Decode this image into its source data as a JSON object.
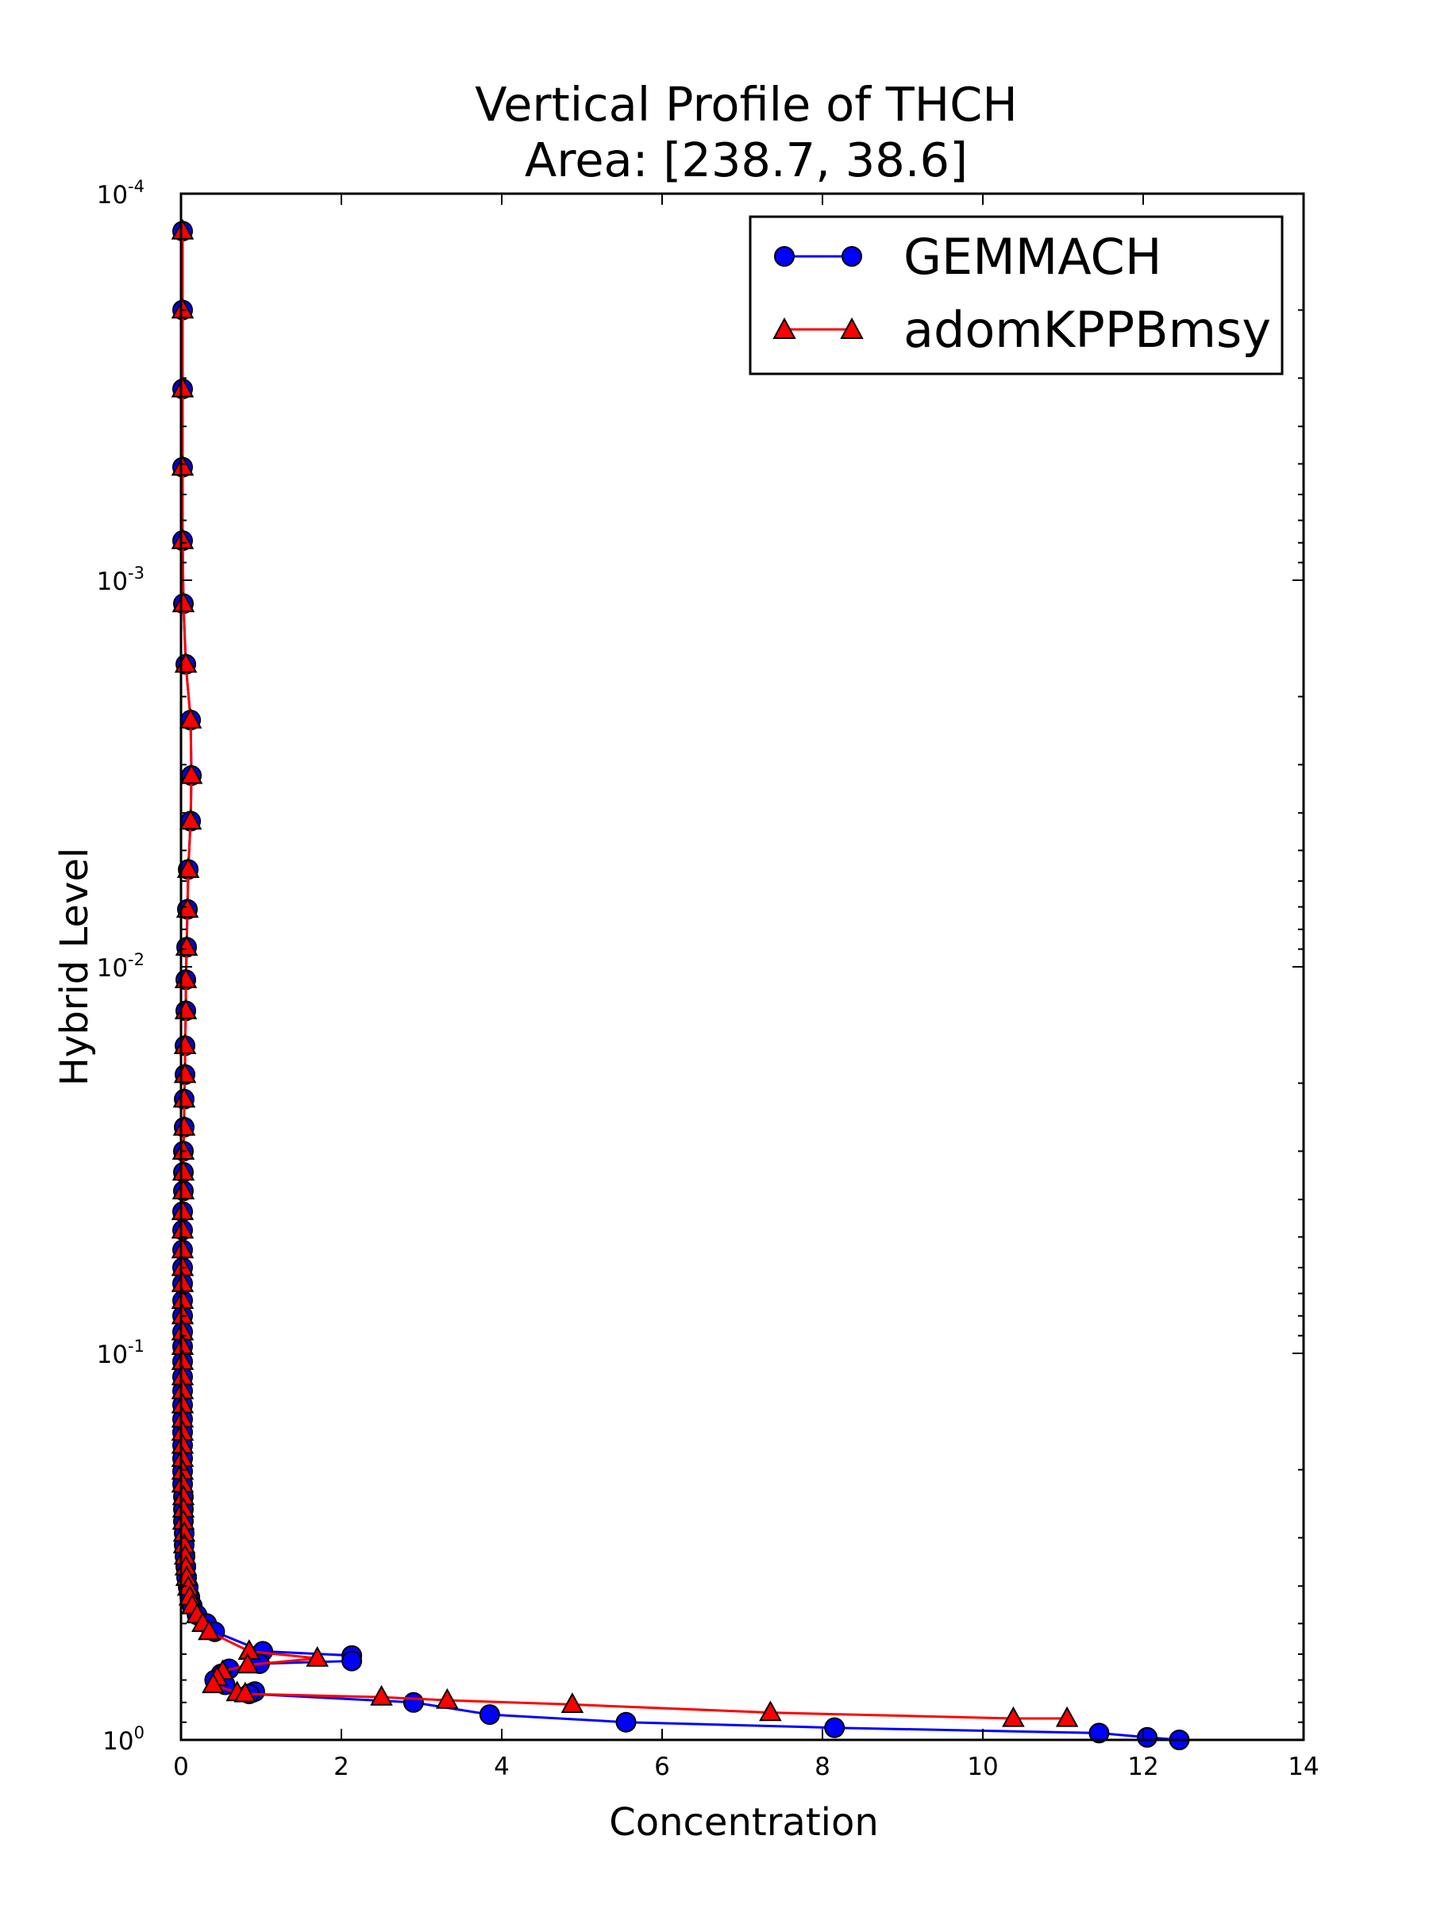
{
  "chart_data": {
    "type": "line",
    "title": "Vertical Profile of THCH",
    "subtitle": "Area: [238.7, 38.6]",
    "xlabel": "Concentration",
    "ylabel": "Hybrid Level",
    "xlim": [
      0,
      14
    ],
    "ylim": [
      1,
      0.0001
    ],
    "y_scale": "log",
    "y_inverted": true,
    "grid": false,
    "legend_position": "top-right",
    "x_ticks": [
      "0",
      "2",
      "4",
      "6",
      "8",
      "10",
      "12",
      "14"
    ],
    "y_ticks": [
      {
        "base": "10",
        "exp": "0"
      },
      {
        "base": "10",
        "exp": "-1"
      },
      {
        "base": "10",
        "exp": "-2"
      },
      {
        "base": "10",
        "exp": "-3"
      },
      {
        "base": "10",
        "exp": "-4"
      }
    ],
    "series": [
      {
        "name": "GEMMACH",
        "color": "#0000ff",
        "marker": "circle",
        "points": [
          [
            0.02,
            0.000125
          ],
          [
            0.02,
            0.0002
          ],
          [
            0.02,
            0.00032
          ],
          [
            0.02,
            0.00051
          ],
          [
            0.02,
            0.00079
          ],
          [
            0.03,
            0.00115
          ],
          [
            0.06,
            0.00165
          ],
          [
            0.12,
            0.0023
          ],
          [
            0.13,
            0.0032
          ],
          [
            0.12,
            0.0042
          ],
          [
            0.09,
            0.0056
          ],
          [
            0.08,
            0.0071
          ],
          [
            0.07,
            0.0089
          ],
          [
            0.06,
            0.0108
          ],
          [
            0.06,
            0.013
          ],
          [
            0.05,
            0.016
          ],
          [
            0.05,
            0.019
          ],
          [
            0.04,
            0.022
          ],
          [
            0.04,
            0.026
          ],
          [
            0.03,
            0.03
          ],
          [
            0.03,
            0.034
          ],
          [
            0.03,
            0.038
          ],
          [
            0.02,
            0.043
          ],
          [
            0.02,
            0.048
          ],
          [
            0.02,
            0.054
          ],
          [
            0.02,
            0.06
          ],
          [
            0.02,
            0.066
          ],
          [
            0.02,
            0.073
          ],
          [
            0.02,
            0.08
          ],
          [
            0.02,
            0.088
          ],
          [
            0.02,
            0.096
          ],
          [
            0.02,
            0.105
          ],
          [
            0.02,
            0.115
          ],
          [
            0.02,
            0.125
          ],
          [
            0.02,
            0.136
          ],
          [
            0.02,
            0.148
          ],
          [
            0.02,
            0.16
          ],
          [
            0.02,
            0.173
          ],
          [
            0.02,
            0.187
          ],
          [
            0.02,
            0.202
          ],
          [
            0.02,
            0.218
          ],
          [
            0.03,
            0.235
          ],
          [
            0.03,
            0.253
          ],
          [
            0.03,
            0.272
          ],
          [
            0.04,
            0.292
          ],
          [
            0.04,
            0.313
          ],
          [
            0.05,
            0.335
          ],
          [
            0.06,
            0.357
          ],
          [
            0.07,
            0.38
          ],
          [
            0.09,
            0.403
          ],
          [
            0.11,
            0.427
          ],
          [
            0.14,
            0.45
          ],
          [
            0.2,
            0.475
          ],
          [
            0.32,
            0.5
          ],
          [
            0.42,
            0.525
          ],
          [
            1.02,
            0.59
          ],
          [
            2.13,
            0.605
          ],
          [
            2.13,
            0.625
          ],
          [
            0.98,
            0.635
          ],
          [
            0.6,
            0.655
          ],
          [
            0.5,
            0.675
          ],
          [
            0.42,
            0.7
          ],
          [
            0.55,
            0.72
          ],
          [
            0.92,
            0.75
          ],
          [
            0.85,
            0.76
          ],
          [
            2.9,
            0.8
          ],
          [
            3.85,
            0.86
          ],
          [
            5.55,
            0.9
          ],
          [
            8.15,
            0.93
          ],
          [
            11.45,
            0.96
          ],
          [
            12.05,
            0.985
          ],
          [
            12.45,
            1.0
          ]
        ]
      },
      {
        "name": "adomKPPBmsy",
        "color": "#ff0000",
        "marker": "triangle",
        "points": [
          [
            0.02,
            0.000125
          ],
          [
            0.02,
            0.0002
          ],
          [
            0.02,
            0.00032
          ],
          [
            0.02,
            0.00051
          ],
          [
            0.02,
            0.00079
          ],
          [
            0.03,
            0.00115
          ],
          [
            0.06,
            0.00165
          ],
          [
            0.12,
            0.0023
          ],
          [
            0.13,
            0.0032
          ],
          [
            0.12,
            0.0042
          ],
          [
            0.09,
            0.0056
          ],
          [
            0.08,
            0.0071
          ],
          [
            0.07,
            0.0089
          ],
          [
            0.06,
            0.0108
          ],
          [
            0.06,
            0.013
          ],
          [
            0.05,
            0.016
          ],
          [
            0.05,
            0.019
          ],
          [
            0.04,
            0.022
          ],
          [
            0.04,
            0.026
          ],
          [
            0.03,
            0.03
          ],
          [
            0.03,
            0.034
          ],
          [
            0.03,
            0.038
          ],
          [
            0.02,
            0.043
          ],
          [
            0.02,
            0.048
          ],
          [
            0.02,
            0.054
          ],
          [
            0.02,
            0.06
          ],
          [
            0.02,
            0.066
          ],
          [
            0.02,
            0.073
          ],
          [
            0.02,
            0.08
          ],
          [
            0.02,
            0.088
          ],
          [
            0.02,
            0.096
          ],
          [
            0.02,
            0.105
          ],
          [
            0.02,
            0.115
          ],
          [
            0.02,
            0.125
          ],
          [
            0.02,
            0.136
          ],
          [
            0.02,
            0.148
          ],
          [
            0.02,
            0.16
          ],
          [
            0.02,
            0.173
          ],
          [
            0.02,
            0.187
          ],
          [
            0.02,
            0.202
          ],
          [
            0.02,
            0.218
          ],
          [
            0.03,
            0.235
          ],
          [
            0.03,
            0.253
          ],
          [
            0.03,
            0.272
          ],
          [
            0.04,
            0.292
          ],
          [
            0.04,
            0.313
          ],
          [
            0.05,
            0.335
          ],
          [
            0.06,
            0.357
          ],
          [
            0.07,
            0.38
          ],
          [
            0.09,
            0.403
          ],
          [
            0.11,
            0.427
          ],
          [
            0.14,
            0.45
          ],
          [
            0.2,
            0.475
          ],
          [
            0.27,
            0.5
          ],
          [
            0.35,
            0.525
          ],
          [
            0.85,
            0.59
          ],
          [
            1.7,
            0.615
          ],
          [
            0.83,
            0.64
          ],
          [
            0.52,
            0.665
          ],
          [
            0.45,
            0.69
          ],
          [
            0.4,
            0.72
          ],
          [
            0.7,
            0.755
          ],
          [
            0.8,
            0.76
          ],
          [
            2.5,
            0.775
          ],
          [
            3.32,
            0.79
          ],
          [
            4.88,
            0.81
          ],
          [
            7.35,
            0.85
          ],
          [
            10.38,
            0.88
          ],
          [
            11.05,
            0.88
          ]
        ]
      }
    ]
  }
}
